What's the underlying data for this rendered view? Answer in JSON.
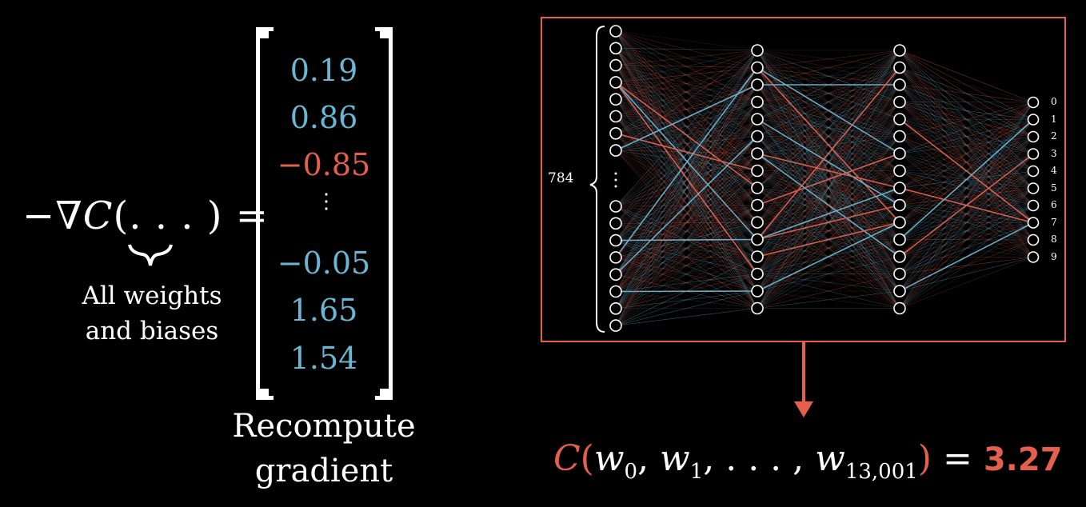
{
  "equation": {
    "lhs_prefix": "−∇",
    "lhs_C": "C",
    "lhs_args": "(. . . ) =",
    "brace_caption_line1": "All weights",
    "brace_caption_line2": "and biases"
  },
  "gradient_vector": {
    "entries": [
      {
        "text": "0.19",
        "color": "#6ab7d4"
      },
      {
        "text": "0.86",
        "color": "#6ab7d4"
      },
      {
        "text": "−0.85",
        "color": "#e4604d"
      },
      {
        "text": "−0.05",
        "color": "#6ab7d4"
      },
      {
        "text": "1.65",
        "color": "#6ab7d4"
      },
      {
        "text": "1.54",
        "color": "#6ab7d4"
      }
    ],
    "vdots": "⋮",
    "caption_line1": "Recompute",
    "caption_line2": "gradient"
  },
  "network": {
    "input_label": "784",
    "output_labels": [
      "0",
      "1",
      "2",
      "3",
      "4",
      "5",
      "6",
      "7",
      "8",
      "9"
    ],
    "colors": {
      "positive": "#6ab7d4",
      "negative": "#e4604d",
      "frame": "#e4604d"
    }
  },
  "cost": {
    "C": "C",
    "open": "(",
    "w0": "w",
    "w0_sub": "0",
    "sep1": ", ",
    "w1": "w",
    "w1_sub": "1",
    "mid": ", . . . , ",
    "wn": "w",
    "wn_sub": "13,001",
    "close": ")",
    "equals": " = ",
    "value": "3.27"
  }
}
